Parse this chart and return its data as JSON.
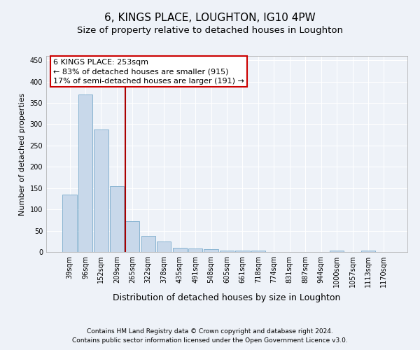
{
  "title": "6, KINGS PLACE, LOUGHTON, IG10 4PW",
  "subtitle": "Size of property relative to detached houses in Loughton",
  "xlabel": "Distribution of detached houses by size in Loughton",
  "ylabel": "Number of detached properties",
  "categories": [
    "39sqm",
    "96sqm",
    "152sqm",
    "209sqm",
    "265sqm",
    "322sqm",
    "378sqm",
    "435sqm",
    "491sqm",
    "548sqm",
    "605sqm",
    "661sqm",
    "718sqm",
    "774sqm",
    "831sqm",
    "887sqm",
    "944sqm",
    "1000sqm",
    "1057sqm",
    "1113sqm",
    "1170sqm"
  ],
  "values": [
    135,
    370,
    288,
    155,
    72,
    37,
    25,
    10,
    8,
    7,
    4,
    4,
    4,
    0,
    0,
    0,
    0,
    4,
    0,
    4,
    0
  ],
  "bar_color": "#c8d8ea",
  "bar_edge_color": "#7aabcc",
  "vline_color": "#aa0000",
  "vline_bar_index": 4,
  "annotation_line1": "6 KINGS PLACE: 253sqm",
  "annotation_line2": "← 83% of detached houses are smaller (915)",
  "annotation_line3": "17% of semi-detached houses are larger (191) →",
  "annotation_box_color": "#ffffff",
  "annotation_box_edge_color": "#cc0000",
  "ylim": [
    0,
    460
  ],
  "yticks": [
    0,
    50,
    100,
    150,
    200,
    250,
    300,
    350,
    400,
    450
  ],
  "footer_line1": "Contains HM Land Registry data © Crown copyright and database right 2024.",
  "footer_line2": "Contains public sector information licensed under the Open Government Licence v3.0.",
  "background_color": "#eef2f8",
  "grid_color": "#ffffff",
  "title_fontsize": 11,
  "subtitle_fontsize": 9.5,
  "xlabel_fontsize": 9,
  "ylabel_fontsize": 8,
  "tick_fontsize": 7,
  "footer_fontsize": 6.5,
  "annotation_fontsize": 8
}
